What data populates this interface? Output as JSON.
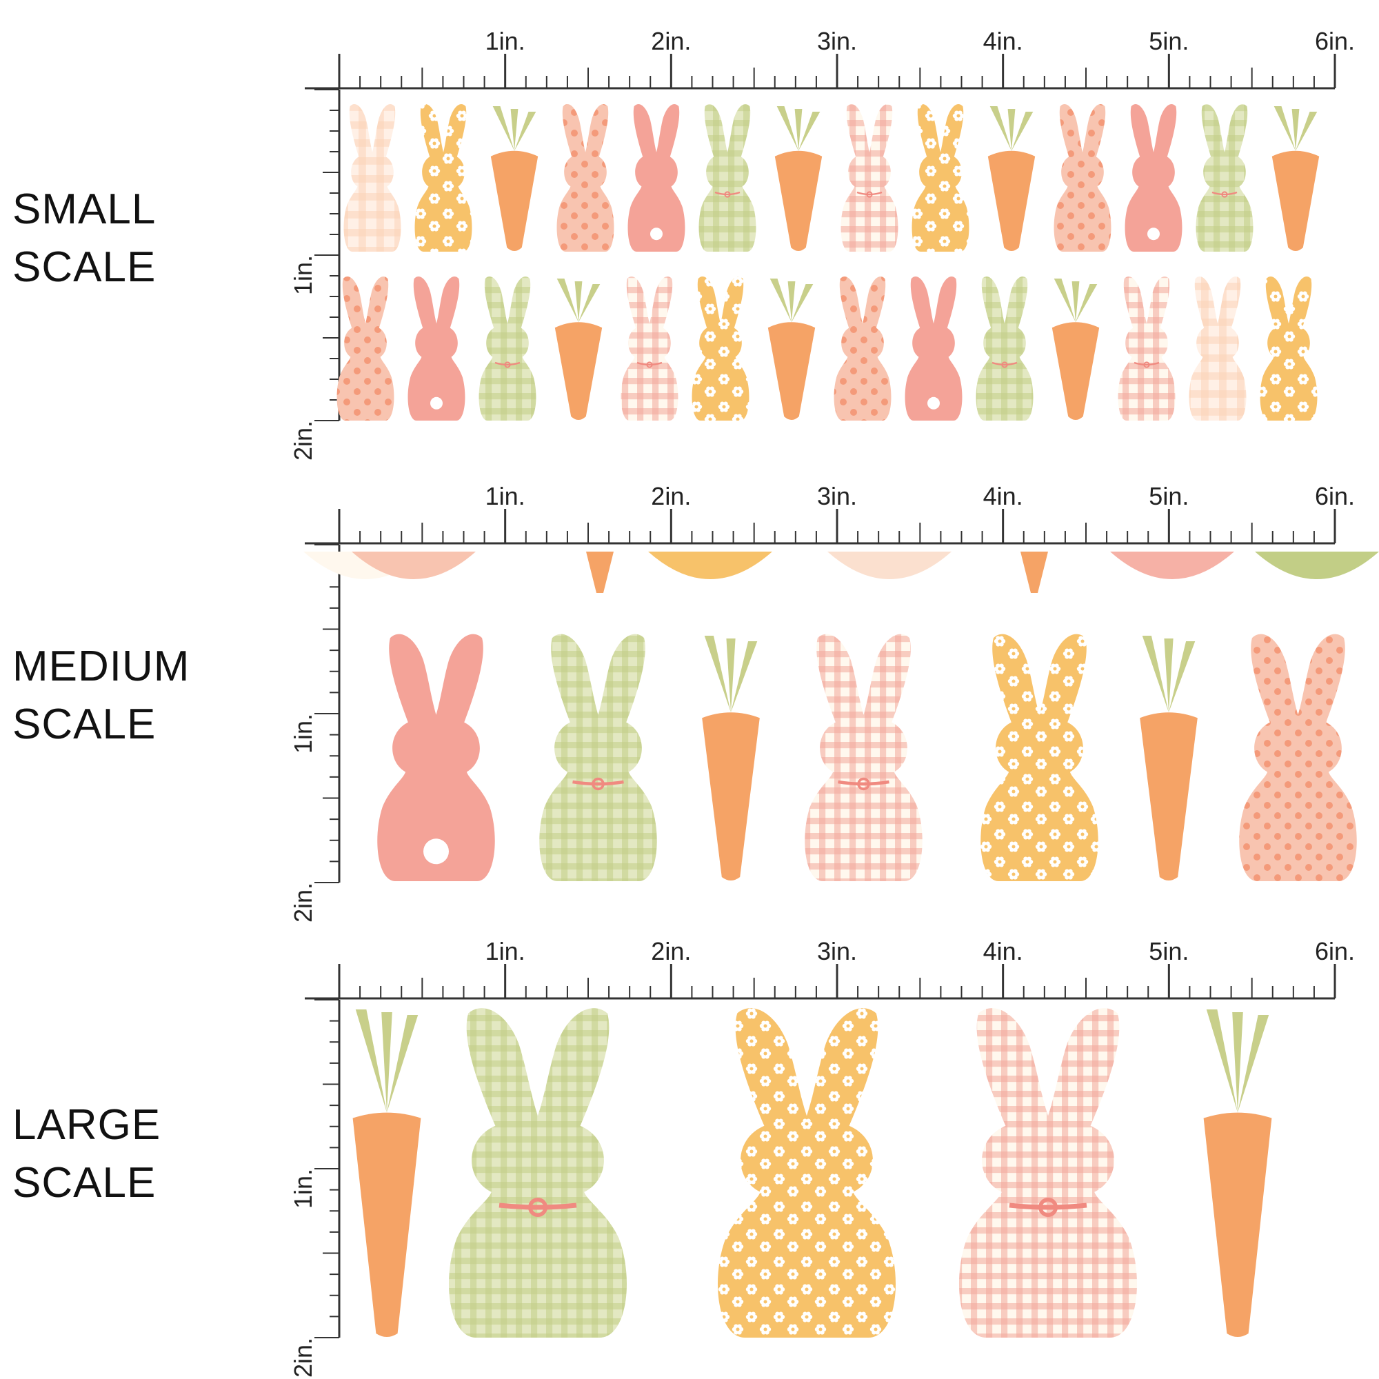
{
  "colors": {
    "coral": "#F4A398",
    "pink": "#F8C4B0",
    "peach": "#FBD2B8",
    "yellow": "#F7C26A",
    "green": "#C2CE86",
    "orange": "#F5A366",
    "leaf": "#C8CF8A",
    "cream": "#FFF8EE",
    "ruler": "#333333"
  },
  "ruler_labels": {
    "horizontal": [
      "1in.",
      "2in.",
      "3in.",
      "4in.",
      "5in.",
      "6in."
    ],
    "vertical": [
      "1in.",
      "2in."
    ]
  },
  "scales": [
    {
      "id": "small",
      "label_line1": "SMALL",
      "label_line2": "SCALE",
      "icons": [
        "bunny-stripe-icon",
        "bunny-floral-icon",
        "carrot-icon",
        "bunny-polka-icon",
        "bunny-plain-icon",
        "bunny-gingham-icon",
        "carrot-icon",
        "bunny-plaid-icon",
        "bunny-floral-icon",
        "carrot-icon",
        "bunny-polka-icon",
        "bunny-plain-icon",
        "bunny-gingham-icon",
        "carrot-icon",
        "bunny-plaid-icon"
      ]
    },
    {
      "id": "medium",
      "label_line1": "MEDIUM",
      "label_line2": "SCALE",
      "icons": [
        "bunny-plain-icon",
        "bunny-gingham-icon",
        "carrot-icon",
        "bunny-plaid-icon",
        "bunny-floral-icon",
        "carrot-icon",
        "bunny-polka-icon"
      ]
    },
    {
      "id": "large",
      "label_line1": "LARGE",
      "label_line2": "SCALE",
      "icons": [
        "carrot-icon",
        "bunny-gingham-icon",
        "bunny-floral-icon",
        "bunny-plaid-icon",
        "carrot-icon"
      ]
    }
  ]
}
